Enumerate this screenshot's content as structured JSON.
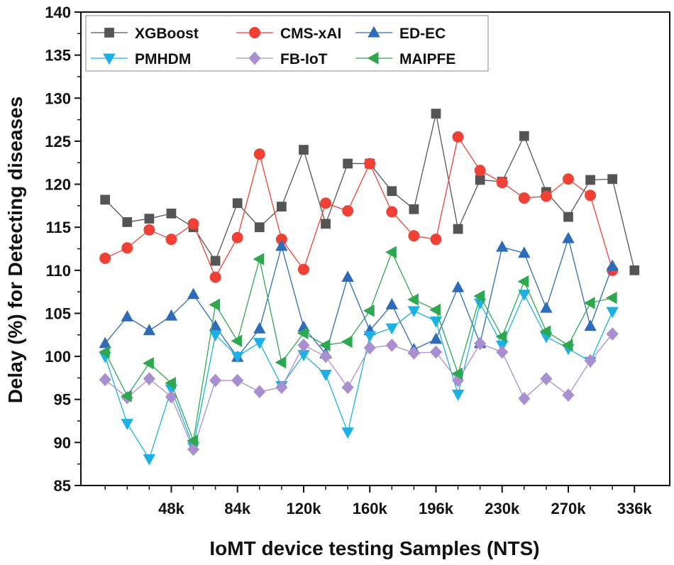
{
  "chart_data": {
    "type": "line",
    "xlabel": "IoMT device testing Samples (NTS)",
    "ylabel": "Delay (%) for Detecting diseases",
    "ylim": [
      85,
      140
    ],
    "yticks": [
      85,
      90,
      95,
      100,
      105,
      110,
      115,
      120,
      125,
      130,
      135,
      140
    ],
    "xtick_labels": [
      "48k",
      "84k",
      "120k",
      "160k",
      "196k",
      "230k",
      "270k",
      "336k"
    ],
    "xtick_positions": [
      4,
      7,
      10,
      13,
      16,
      19,
      22,
      25
    ],
    "x": [
      1,
      2,
      3,
      4,
      5,
      6,
      7,
      8,
      9,
      10,
      11,
      12,
      13,
      14,
      15,
      16,
      17,
      18,
      19,
      20,
      21,
      22,
      23,
      24,
      25
    ],
    "xlim": [
      -0.1,
      26.6
    ],
    "grid": false,
    "legend_position": "top",
    "series": [
      {
        "name": "XGBoost",
        "color": "#555555",
        "marker": "square",
        "values": [
          118.2,
          115.6,
          116.0,
          116.6,
          115.0,
          111.1,
          117.8,
          115.0,
          117.4,
          124.0,
          115.4,
          122.4,
          122.4,
          119.2,
          117.1,
          128.2,
          114.8,
          120.5,
          120.3,
          125.6,
          119.1,
          116.2,
          120.5,
          120.6,
          110.0
        ]
      },
      {
        "name": "CMS-xAI",
        "color": "#ef4136",
        "marker": "circle",
        "values": [
          111.4,
          112.6,
          114.7,
          113.6,
          115.4,
          109.2,
          113.8,
          123.5,
          113.6,
          110.1,
          117.8,
          116.9,
          122.4,
          116.8,
          114.0,
          113.6,
          125.5,
          121.6,
          120.2,
          118.4,
          118.6,
          120.6,
          118.7,
          110.0,
          null
        ]
      },
      {
        "name": "ED-EC",
        "color": "#2e6bb8",
        "marker": "triangle-up",
        "values": [
          101.5,
          104.6,
          103.0,
          104.7,
          107.2,
          103.5,
          99.9,
          103.2,
          112.8,
          103.4,
          100.3,
          109.2,
          103.0,
          106.0,
          100.8,
          102.0,
          108.0,
          101.5,
          112.7,
          112.0,
          105.6,
          113.7,
          103.5,
          110.5,
          null
        ]
      },
      {
        "name": "PMHDM",
        "color": "#1cb0e4",
        "marker": "triangle-down",
        "values": [
          100.0,
          92.2,
          88.1,
          96.2,
          89.5,
          102.5,
          100.0,
          101.6,
          96.6,
          100.2,
          97.9,
          91.2,
          102.4,
          103.3,
          105.3,
          104.1,
          95.6,
          106.2,
          101.3,
          107.2,
          102.3,
          100.9,
          99.4,
          105.2,
          null
        ]
      },
      {
        "name": "FB-IoT",
        "color": "#a98fcf",
        "marker": "diamond",
        "values": [
          97.3,
          95.2,
          97.4,
          95.3,
          89.2,
          97.2,
          97.2,
          95.9,
          96.4,
          101.3,
          100.0,
          96.4,
          101.0,
          101.3,
          100.4,
          100.5,
          97.2,
          101.5,
          100.5,
          95.1,
          97.4,
          95.5,
          99.5,
          102.6,
          null
        ]
      },
      {
        "name": "MAIPFE",
        "color": "#2ea84f",
        "marker": "triangle-left",
        "values": [
          100.5,
          95.4,
          99.2,
          96.9,
          90.2,
          106.0,
          101.8,
          111.3,
          99.3,
          102.7,
          101.3,
          101.7,
          105.3,
          112.1,
          106.6,
          105.4,
          98.0,
          107.0,
          102.3,
          108.7,
          102.9,
          101.3,
          106.2,
          106.8,
          null
        ]
      }
    ]
  }
}
